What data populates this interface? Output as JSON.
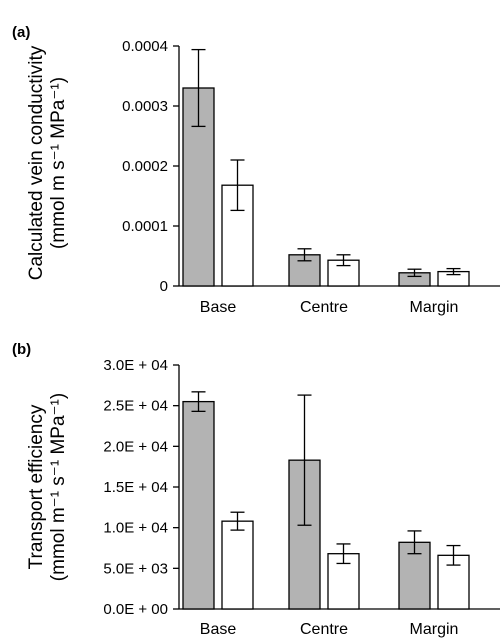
{
  "chart_data": [
    {
      "panel_label": "(a)",
      "type": "bar",
      "categories": [
        "Base",
        "Centre",
        "Margin"
      ],
      "series": [
        {
          "fill": "#b3b3b3",
          "values": [
            0.00033,
            5.2e-05,
            2.2e-05
          ],
          "errors": [
            6.4e-05,
            1e-05,
            6e-06
          ]
        },
        {
          "fill": "#ffffff",
          "values": [
            0.000168,
            4.3e-05,
            2.4e-05
          ],
          "errors": [
            4.2e-05,
            9e-06,
            5e-06
          ]
        }
      ],
      "ylabel_lines": [
        "Calculated vein conductivity",
        "(mmol m s⁻¹ MPa⁻¹)"
      ],
      "yticks": [
        "0",
        "0.0001",
        "0.0002",
        "0.0003",
        "0.0004"
      ],
      "ytick_values": [
        0,
        0.0001,
        0.0002,
        0.0003,
        0.0004
      ],
      "ylim": [
        0,
        0.0004
      ]
    },
    {
      "panel_label": "(b)",
      "type": "bar",
      "categories": [
        "Base",
        "Centre",
        "Margin"
      ],
      "series": [
        {
          "fill": "#b3b3b3",
          "values": [
            25500,
            18300,
            8200
          ],
          "errors": [
            1200,
            8000,
            1400
          ]
        },
        {
          "fill": "#ffffff",
          "values": [
            10800,
            6800,
            6600
          ],
          "errors": [
            1100,
            1200,
            1200
          ]
        }
      ],
      "ylabel_lines": [
        "Transport efficiency",
        "(mmol m⁻¹ s⁻¹ MPa⁻¹)"
      ],
      "yticks": [
        "0.0E + 00",
        "5.0E + 03",
        "1.0E + 04",
        "1.5E + 04",
        "2.0E + 04",
        "2.5E + 04",
        "3.0E + 04"
      ],
      "ytick_values": [
        0,
        5000,
        10000,
        15000,
        20000,
        25000,
        30000
      ],
      "ylim": [
        0,
        30000
      ]
    }
  ]
}
